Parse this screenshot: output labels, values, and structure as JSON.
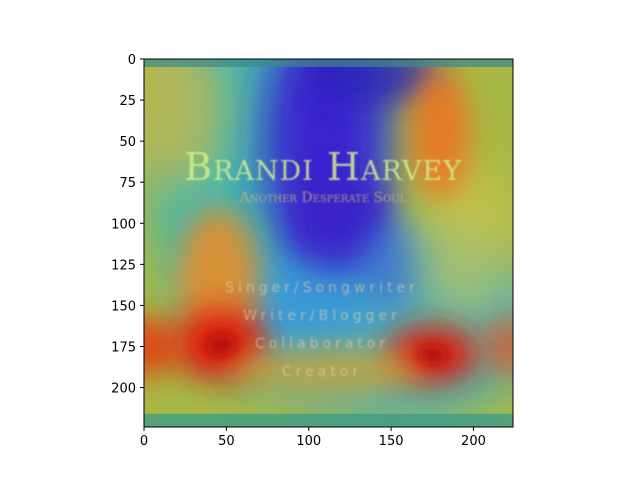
{
  "chart_data": {
    "type": "heatmap",
    "title": "",
    "xlabel": "",
    "ylabel": "",
    "xlim": [
      0,
      224
    ],
    "ylim": [
      224,
      0
    ],
    "x_ticks": [
      0,
      50,
      100,
      150,
      200
    ],
    "y_ticks": [
      0,
      25,
      50,
      75,
      100,
      125,
      150,
      175,
      200
    ],
    "colormap": "jet",
    "grid": false,
    "legend": "none",
    "heat_spots": [
      {
        "x": 47,
        "y": 174,
        "intensity": 1.0
      },
      {
        "x": 175,
        "y": 180,
        "intensity": 1.0
      },
      {
        "x": 180,
        "y": 45,
        "intensity": 0.8
      },
      {
        "x": 0,
        "y": 175,
        "intensity": 0.7
      },
      {
        "x": 224,
        "y": 175,
        "intensity": 0.6
      }
    ],
    "cold_spots": [
      {
        "x": 110,
        "y": 50,
        "intensity": 1.0
      },
      {
        "x": 140,
        "y": 10,
        "intensity": 0.6
      },
      {
        "x": 100,
        "y": 150,
        "intensity": 0.5
      }
    ]
  },
  "image_text": {
    "name": "Brandi Harvey",
    "tagline": "Another Desperate Soul",
    "roles": [
      "Singer/Songwriter",
      "Writer/Blogger",
      "Collaborator",
      "Creator"
    ]
  },
  "colors": {
    "name_text": "#d4f08a",
    "tagline_text": "#d6c07a",
    "role_text": "#f0d8a8"
  }
}
